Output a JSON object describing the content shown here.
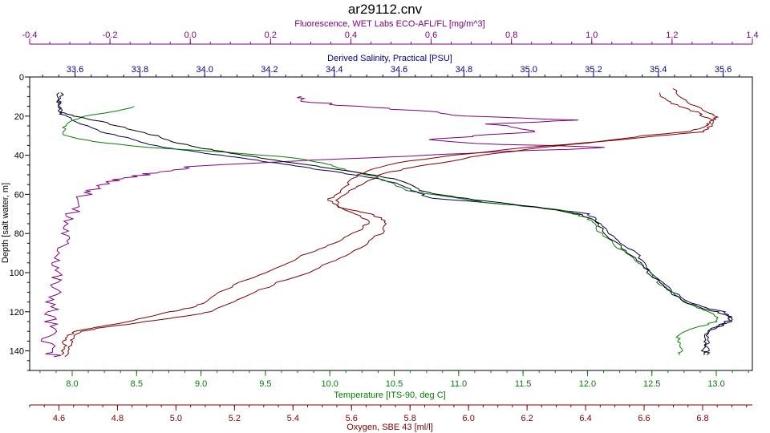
{
  "chart_data": {
    "type": "line",
    "title": "ar29112.cnv",
    "grid": false,
    "legend": "none",
    "y_axis": {
      "label": "Depth [salt water, m]",
      "range": [
        0,
        150
      ],
      "inverted": true,
      "ticks": [
        0,
        20,
        40,
        60,
        80,
        100,
        120,
        140
      ]
    },
    "x_axes": [
      {
        "id": "fluorescence",
        "label": "Fluorescence, WET Labs ECO-AFL/FL [mg/m^3]",
        "position": "top",
        "color": "#800080",
        "range": [
          -0.4,
          1.4
        ],
        "ticks": [
          "-0.4",
          "-0.2",
          "0.0",
          "0.2",
          "0.4",
          "0.6",
          "0.8",
          "1.0",
          "1.2",
          "1.4"
        ]
      },
      {
        "id": "salinity",
        "label": "Derived Salinity, Practical [PSU]",
        "position": "top",
        "color": "#000080",
        "range": [
          33.46,
          35.69
        ],
        "ticks": [
          "33.6",
          "33.8",
          "34.0",
          "34.2",
          "34.4",
          "34.6",
          "34.8",
          "35.0",
          "35.2",
          "35.4",
          "35.6"
        ]
      },
      {
        "id": "temperature",
        "label": "Temperature [ITS-90, deg C]",
        "position": "bottom",
        "color": "#008000",
        "range": [
          7.67,
          13.28
        ],
        "ticks": [
          "8.0",
          "8.5",
          "9.0",
          "9.5",
          "10.0",
          "10.5",
          "11.0",
          "11.5",
          "12.0",
          "12.5",
          "13.0"
        ]
      },
      {
        "id": "oxygen",
        "label": "Oxygen, SBE 43 [ml/l]",
        "position": "bottom",
        "color": "#800000",
        "range": [
          4.5,
          6.97
        ],
        "ticks": [
          "4.6",
          "4.8",
          "5.0",
          "5.2",
          "5.4",
          "5.6",
          "5.8",
          "6.0",
          "6.2",
          "6.4",
          "6.6",
          "6.8"
        ]
      }
    ],
    "series": [
      {
        "axis": "salinity",
        "color": "#000060",
        "depth": [
          8,
          12,
          15,
          18,
          20,
          24,
          28,
          31,
          34,
          36,
          38,
          40,
          42,
          44,
          46,
          48,
          50,
          52,
          55,
          58,
          60,
          62,
          64,
          66,
          68,
          70,
          72,
          75,
          80,
          85,
          90,
          95,
          100,
          105,
          110,
          115,
          118,
          120,
          122,
          124,
          126,
          128,
          130,
          133,
          136,
          140,
          142
        ],
        "values": [
          33.56,
          33.55,
          33.55,
          33.55,
          33.57,
          33.62,
          33.68,
          33.76,
          33.82,
          33.88,
          33.96,
          34.05,
          34.14,
          34.22,
          34.3,
          34.38,
          34.46,
          34.54,
          34.6,
          34.64,
          34.67,
          34.7,
          34.85,
          35.0,
          35.1,
          35.18,
          35.2,
          35.22,
          35.25,
          35.28,
          35.33,
          35.36,
          35.38,
          35.42,
          35.45,
          35.5,
          35.55,
          35.6,
          35.62,
          35.62,
          35.6,
          35.57,
          35.55,
          35.55,
          35.55,
          35.55,
          35.55
        ]
      },
      {
        "axis": "temperature",
        "color": "#008000",
        "depth": [
          15,
          18,
          20,
          22,
          25,
          28,
          30,
          33,
          36,
          38,
          40,
          42,
          44,
          46,
          48,
          50,
          52,
          55,
          58,
          60,
          62,
          64,
          66,
          68,
          70,
          72,
          75,
          80,
          85,
          90,
          95,
          100,
          105,
          110,
          115,
          118,
          120,
          122,
          124,
          126,
          128,
          130,
          133,
          136,
          140,
          142
        ],
        "values": [
          8.5,
          8.3,
          8.1,
          8.0,
          7.95,
          7.93,
          7.95,
          8.15,
          8.6,
          9.1,
          9.5,
          9.8,
          9.95,
          10.05,
          10.15,
          10.3,
          10.4,
          10.5,
          10.6,
          10.8,
          11.0,
          11.2,
          11.5,
          11.8,
          11.9,
          12.0,
          12.05,
          12.1,
          12.2,
          12.3,
          12.4,
          12.5,
          12.55,
          12.65,
          12.75,
          12.85,
          12.95,
          13.0,
          13.02,
          12.95,
          12.85,
          12.75,
          12.7,
          12.72,
          12.72,
          12.72
        ]
      },
      {
        "axis": "fluorescence",
        "color": "#800080",
        "depth": [
          10,
          12,
          14,
          16,
          18,
          20,
          22,
          24,
          26,
          28,
          30,
          32,
          34,
          36,
          38,
          40,
          42,
          44,
          46,
          48,
          50,
          52,
          54,
          56,
          58,
          60,
          65,
          70,
          75,
          80,
          85,
          90,
          95,
          100,
          105,
          110,
          115,
          120,
          125,
          130,
          135,
          140,
          143
        ],
        "values": [
          0.26,
          0.28,
          0.35,
          0.48,
          0.62,
          0.68,
          0.95,
          0.75,
          0.8,
          0.85,
          0.72,
          0.6,
          0.7,
          1.05,
          0.8,
          0.6,
          0.35,
          0.15,
          0.0,
          -0.05,
          -0.12,
          -0.17,
          -0.2,
          -0.22,
          -0.24,
          -0.26,
          -0.28,
          -0.3,
          -0.31,
          -0.31,
          -0.32,
          -0.32,
          -0.33,
          -0.33,
          -0.34,
          -0.34,
          -0.34,
          -0.35,
          -0.35,
          -0.35,
          -0.35,
          -0.35,
          -0.34
        ]
      },
      {
        "axis": "oxygen",
        "color": "#800000",
        "depth": [
          8,
          12,
          15,
          18,
          20,
          22,
          24,
          26,
          28,
          30,
          33,
          36,
          40,
          44,
          47,
          50,
          54,
          58,
          62,
          66,
          68,
          70,
          72,
          75,
          80,
          85,
          90,
          95,
          100,
          105,
          110,
          115,
          118,
          120,
          122,
          124,
          126,
          128,
          130,
          133,
          136,
          140,
          143
        ],
        "values": [
          6.65,
          6.68,
          6.72,
          6.78,
          6.8,
          6.83,
          6.82,
          6.8,
          6.75,
          6.6,
          6.45,
          6.25,
          6.05,
          5.9,
          5.78,
          5.7,
          5.65,
          5.6,
          5.55,
          5.55,
          5.6,
          5.66,
          5.7,
          5.72,
          5.7,
          5.65,
          5.6,
          5.52,
          5.45,
          5.35,
          5.27,
          5.2,
          5.15,
          5.12,
          5.05,
          4.95,
          4.85,
          4.75,
          4.68,
          4.65,
          4.64,
          4.63,
          4.62
        ]
      },
      {
        "axis": "salinity",
        "color": "#000000",
        "depth": [
          8,
          12,
          15,
          18,
          20,
          22,
          25,
          28,
          30,
          33,
          36,
          38,
          40,
          42,
          44,
          46,
          48,
          50,
          52,
          55,
          58,
          60,
          62,
          65,
          68,
          70,
          72,
          75,
          80,
          85,
          90,
          95,
          100,
          105,
          110,
          115,
          118,
          120,
          122,
          124,
          126,
          128,
          130,
          133,
          136,
          140,
          142
        ],
        "values": [
          33.55,
          33.55,
          33.55,
          33.56,
          33.6,
          33.66,
          33.73,
          33.8,
          33.85,
          33.9,
          33.98,
          34.05,
          34.12,
          34.2,
          34.28,
          34.36,
          34.44,
          34.52,
          34.58,
          34.63,
          34.67,
          34.72,
          34.8,
          34.95,
          35.08,
          35.15,
          35.19,
          35.21,
          35.24,
          35.27,
          35.31,
          35.35,
          35.37,
          35.41,
          35.44,
          35.48,
          35.53,
          35.58,
          35.62,
          35.63,
          35.61,
          35.58,
          35.55,
          35.54,
          35.54,
          35.54,
          35.54
        ]
      },
      {
        "axis": "oxygen",
        "color": "#800000",
        "depth": [
          6,
          10,
          14,
          18,
          20,
          22,
          25,
          28,
          30,
          33,
          36,
          40,
          44,
          48,
          52,
          56,
          60,
          63,
          66,
          70,
          74,
          78,
          82,
          86,
          90,
          95,
          100,
          105,
          110,
          115,
          118,
          120,
          123,
          126,
          128,
          130,
          132,
          135,
          138,
          142
        ],
        "values": [
          6.7,
          6.72,
          6.76,
          6.82,
          6.85,
          6.84,
          6.83,
          6.8,
          6.65,
          6.45,
          6.2,
          5.95,
          5.75,
          5.65,
          5.6,
          5.58,
          5.55,
          5.52,
          5.55,
          5.62,
          5.66,
          5.63,
          5.58,
          5.52,
          5.45,
          5.38,
          5.3,
          5.22,
          5.15,
          5.1,
          5.05,
          4.98,
          4.9,
          4.8,
          4.72,
          4.66,
          4.63,
          4.62,
          4.62,
          4.61
        ]
      }
    ]
  }
}
